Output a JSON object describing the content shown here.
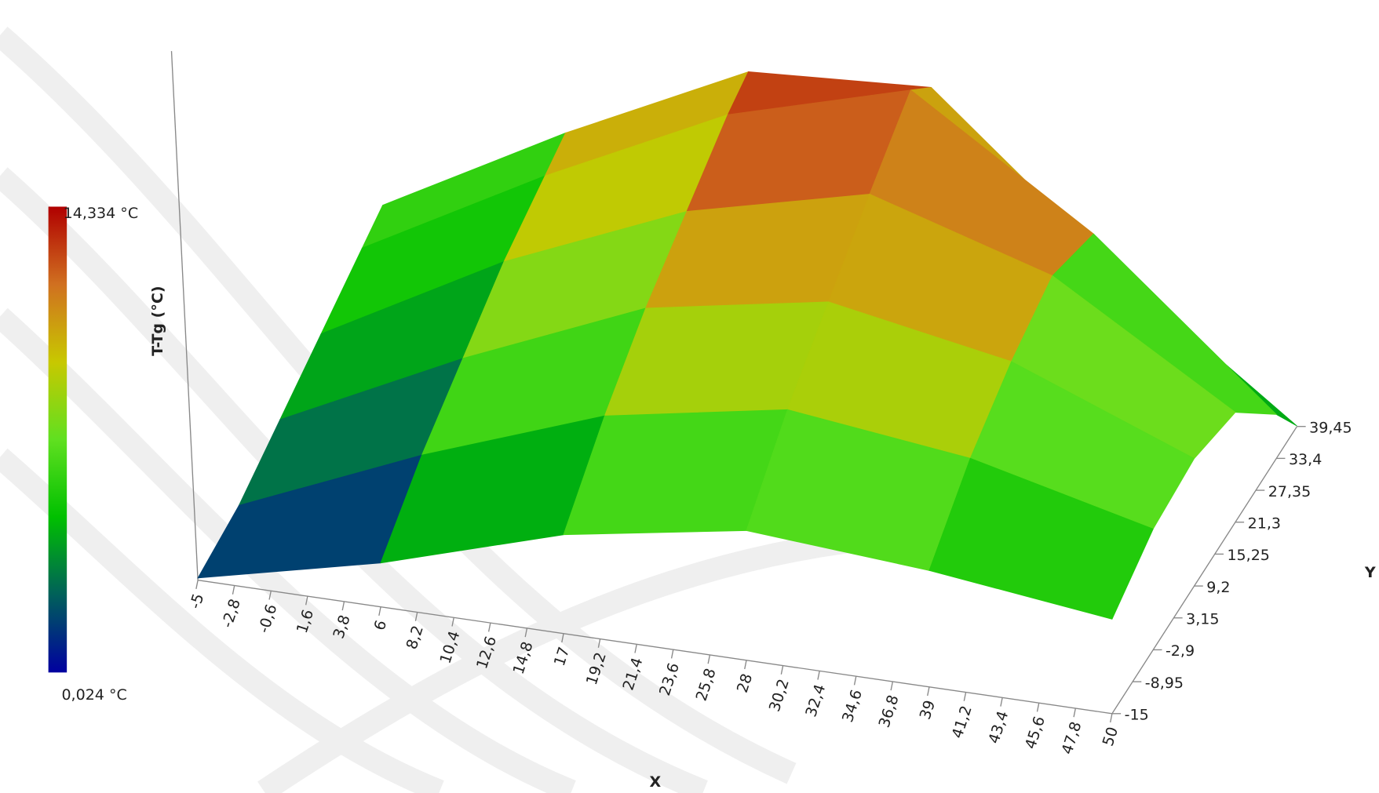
{
  "chart_data": {
    "type": "surface",
    "x_label": "X",
    "y_label": "Y",
    "z_label": "T-Tg (°C)",
    "xticks": [
      -5,
      {
        "value": -2.8,
        "label": "-2,8"
      },
      {
        "value": -0.6,
        "label": "-0,6"
      },
      {
        "value": 1.6,
        "label": "1,6"
      },
      {
        "value": 3.8,
        "label": "3,8"
      },
      6,
      {
        "value": 8.2,
        "label": "8,2"
      },
      {
        "value": 10.4,
        "label": "10,4"
      },
      {
        "value": 12.6,
        "label": "12,6"
      },
      {
        "value": 14.8,
        "label": "14,8"
      },
      17,
      {
        "value": 19.2,
        "label": "19,2"
      },
      {
        "value": 21.4,
        "label": "21,4"
      },
      {
        "value": 23.6,
        "label": "23,6"
      },
      {
        "value": 25.8,
        "label": "25,8"
      },
      28,
      {
        "value": 30.2,
        "label": "30,2"
      },
      {
        "value": 32.4,
        "label": "32,4"
      },
      {
        "value": 34.6,
        "label": "34,6"
      },
      {
        "value": 36.8,
        "label": "36,8"
      },
      39,
      {
        "value": 41.2,
        "label": "41,2"
      },
      {
        "value": 43.4,
        "label": "43,4"
      },
      {
        "value": 45.6,
        "label": "45,6"
      },
      {
        "value": 47.8,
        "label": "47,8"
      },
      50
    ],
    "xlim": [
      -5,
      50
    ],
    "yticks": [
      -15,
      {
        "value": -8.95,
        "label": "-8,95"
      },
      {
        "value": -2.9,
        "label": "-2,9"
      },
      {
        "value": 3.15,
        "label": "3,15"
      },
      {
        "value": 9.2,
        "label": "9,2"
      },
      {
        "value": 15.25,
        "label": "15,25"
      },
      {
        "value": 21.3,
        "label": "21,3"
      },
      {
        "value": 27.35,
        "label": "27,35"
      },
      {
        "value": 33.4,
        "label": "33,4"
      },
      {
        "value": 39.45,
        "label": "39,45"
      }
    ],
    "ylim": [
      -15,
      39.45
    ],
    "colorbar_ticks": [
      {
        "value": 14.334,
        "label": "14,334 °C"
      },
      {
        "value": 0.024,
        "label": "0,024 °C"
      }
    ],
    "colormap": [
      "#0000a0",
      "#00605a",
      "#00c000",
      "#60e020",
      "#c8c800",
      "#d07020",
      "#b00000"
    ],
    "surface": {
      "x": [
        -5,
        6,
        17,
        28,
        39,
        50
      ],
      "y": [
        -15,
        -2.9,
        9.2,
        21.3,
        33.4,
        39.45
      ],
      "z": [
        [
          0.1,
          2.0,
          4.5,
          5.9,
          5.3,
          4.3
        ],
        [
          0.5,
          4.0,
          7.0,
          8.5,
          7.5,
          5.5
        ],
        [
          1.5,
          5.5,
          9.0,
          10.5,
          9.0,
          5.8
        ],
        [
          2.5,
          7.0,
          10.5,
          12.5,
          10.0,
          5.0
        ],
        [
          3.5,
          8.0,
          12.0,
          14.334,
          9.0,
          2.0
        ],
        [
          4.0,
          8.5,
          12.5,
          13.0,
          6.0,
          0.024
        ]
      ]
    }
  }
}
